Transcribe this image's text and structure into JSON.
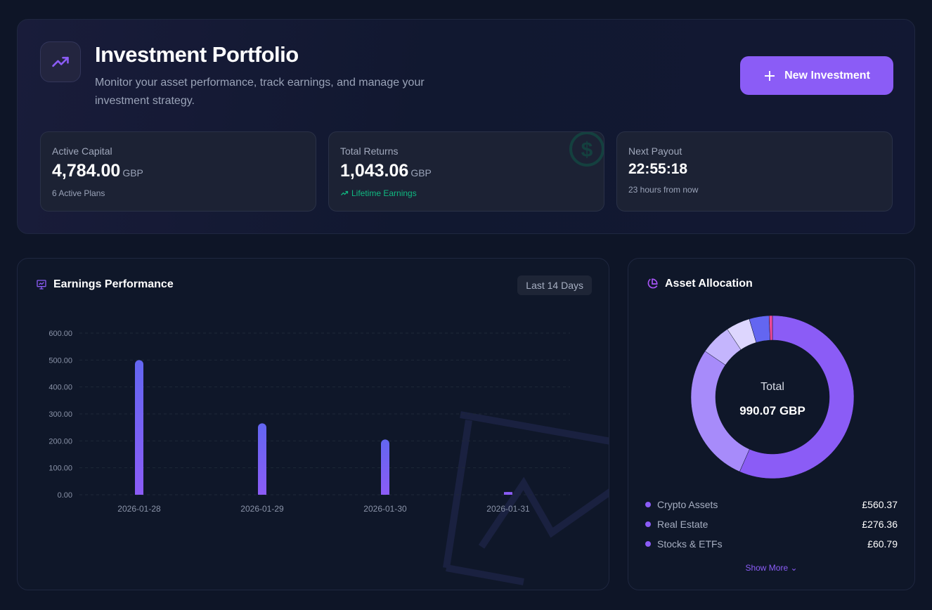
{
  "header": {
    "title": "Investment Portfolio",
    "subtitle": "Monitor your asset performance, track earnings, and manage your investment strategy.",
    "new_button": "New Investment",
    "logo_icon": "trending-up-icon"
  },
  "stats": [
    {
      "label": "Active Capital",
      "value": "4,784.00",
      "unit": "GBP",
      "note": "6 Active Plans"
    },
    {
      "label": "Total Returns",
      "value": "1,043.06",
      "unit": "GBP",
      "note": "Lifetime Earnings",
      "note_color": "#10b981"
    },
    {
      "label": "Next Payout",
      "value": "22:55:18",
      "note": "23 hours from now"
    }
  ],
  "earnings": {
    "title": "Earnings Performance",
    "range": "Last 14 Days"
  },
  "allocation": {
    "title": "Asset Allocation",
    "center_label": "Total",
    "center_value": "990.07 GBP",
    "show_more": "Show More",
    "legend": [
      {
        "name": "Crypto Assets",
        "amount": "£560.37"
      },
      {
        "name": "Real Estate",
        "amount": "£276.36"
      },
      {
        "name": "Stocks & ETFs",
        "amount": "£60.79"
      }
    ]
  },
  "chart_data": [
    {
      "type": "bar",
      "categories": [
        "2026-01-28",
        "2026-01-29",
        "2026-01-30",
        "2026-01-31"
      ],
      "values": [
        500,
        265,
        205,
        10
      ],
      "ylim": [
        0,
        600
      ],
      "yticks": [
        "0.00",
        "100.00",
        "200.00",
        "300.00",
        "400.00",
        "500.00",
        "600.00"
      ],
      "grid": true,
      "bar_gradient": [
        "#6366f1",
        "#8b5cf6"
      ]
    },
    {
      "type": "pie",
      "donut": true,
      "values": [
        560.37,
        276.36,
        60.79,
        47,
        39,
        6.55
      ],
      "colors": [
        "#8b5cf6",
        "#a78bfa",
        "#c4b5fd",
        "#ddd6fe",
        "#6366f1",
        "#ec4899"
      ]
    }
  ],
  "colors": {
    "accent": "#8b5cf6",
    "success": "#10b981",
    "background": "#0e1527"
  }
}
